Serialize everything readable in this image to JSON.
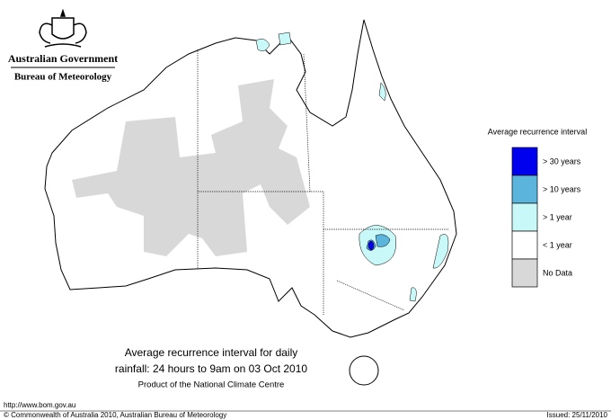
{
  "header": {
    "government": "Australian Government",
    "agency": "Bureau of Meteorology"
  },
  "legend": {
    "title": "Average recurrence interval",
    "items": [
      {
        "label": "> 30 years",
        "color": "#0000ee"
      },
      {
        "label": "> 10 years",
        "color": "#5ab4dc"
      },
      {
        "label": "> 1 year",
        "color": "#c8f8f8"
      },
      {
        "label": "< 1 year",
        "color": "#ffffff"
      },
      {
        "label": "No Data",
        "color": "#d8d8d8"
      }
    ]
  },
  "caption": {
    "lines": [
      "Average recurrence interval for daily",
      "rainfall: 24 hours to 9am on 03 Oct 2010"
    ],
    "credit": "Product of the National Climate Centre"
  },
  "footer": {
    "url": "http://www.bom.gov.au",
    "copyright": "© Commonwealth of Australia 2010, Australian Bureau of Meteorology",
    "issued": "Issued: 25/11/2010"
  }
}
